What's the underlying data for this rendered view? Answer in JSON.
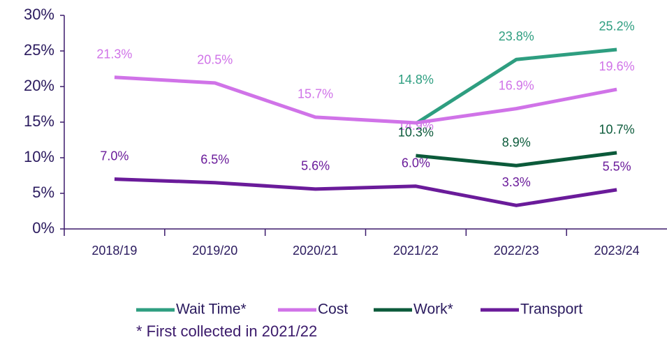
{
  "chart_data": {
    "type": "line",
    "categories": [
      "2018/19",
      "2019/20",
      "2020/21",
      "2021/22",
      "2022/23",
      "2023/24"
    ],
    "series": [
      {
        "name": "Wait Time*",
        "color": "#2e9e80",
        "values": [
          null,
          null,
          null,
          14.8,
          23.8,
          25.2
        ],
        "value_labels": [
          null,
          null,
          null,
          "14.8%",
          "23.8%",
          "25.2%"
        ]
      },
      {
        "name": "Cost",
        "color": "#d073e8",
        "values": [
          21.3,
          20.5,
          15.7,
          14.9,
          16.9,
          19.6
        ],
        "value_labels": [
          "21.3%",
          "20.5%",
          "15.7%",
          "14.9%",
          "16.9%",
          "19.6%"
        ]
      },
      {
        "name": "Work*",
        "color": "#0b5a3a",
        "values": [
          null,
          null,
          null,
          10.3,
          8.9,
          10.7
        ],
        "value_labels": [
          null,
          null,
          null,
          "10.3%",
          "8.9%",
          "10.7%"
        ]
      },
      {
        "name": "Transport",
        "color": "#6a1b9a",
        "values": [
          7.0,
          6.5,
          5.6,
          6.0,
          3.3,
          5.5
        ],
        "value_labels": [
          "7.0%",
          "6.5%",
          "5.6%",
          "6.0%",
          "3.3%",
          "5.5%"
        ]
      }
    ],
    "ylim": [
      0,
      30
    ],
    "yticks": [
      {
        "value": 0,
        "label": "0%"
      },
      {
        "value": 5,
        "label": "5%"
      },
      {
        "value": 10,
        "label": "10%"
      },
      {
        "value": 15,
        "label": "15%"
      },
      {
        "value": 20,
        "label": "20%"
      },
      {
        "value": 25,
        "label": "25%"
      },
      {
        "value": 30,
        "label": "30%"
      }
    ],
    "legend": "bottom",
    "annotations": [
      "* First collected in 2021/22"
    ]
  }
}
